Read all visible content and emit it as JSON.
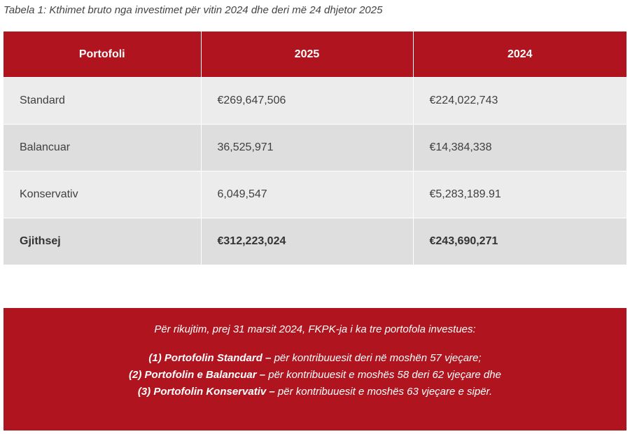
{
  "caption": "Tabela 1: Kthimet bruto nga investimet për vitin 2024 dhe deri më 24 dhjetor 2025",
  "table": {
    "headers": [
      "Portofoli",
      "2025",
      "2024"
    ],
    "rows": [
      [
        "Standard",
        "€269,647,506",
        "€224,022,743"
      ],
      [
        "Balancuar",
        "36,525,971",
        "€14,384,338"
      ],
      [
        "Konservativ",
        "6,049,547",
        "€5,283,189.91"
      ],
      [
        "Gjithsej",
        "€312,223,024",
        "€243,690,271"
      ]
    ]
  },
  "note": {
    "intro": "Për rikujtim, prej 31 marsit 2024, FKPK-ja  i ka tre portofola investues:",
    "items": [
      {
        "bold": "(1) Portofolin Standard –",
        "text": " për kontribuuesit  deri në moshën 57 vjeçare;"
      },
      {
        "bold": "(2) Portofolin e Balancuar –",
        "text": " për kontribuuesit e moshës 58 deri 62 vjeçare dhe"
      },
      {
        "bold": "(3) Portofolin Konservativ –",
        "text": " për kontribuuesit e moshës 63 vjeçare e sipër."
      }
    ]
  },
  "colors": {
    "brand_red": "#b0151f",
    "row_light": "#ececec",
    "row_dark": "#dedede"
  }
}
